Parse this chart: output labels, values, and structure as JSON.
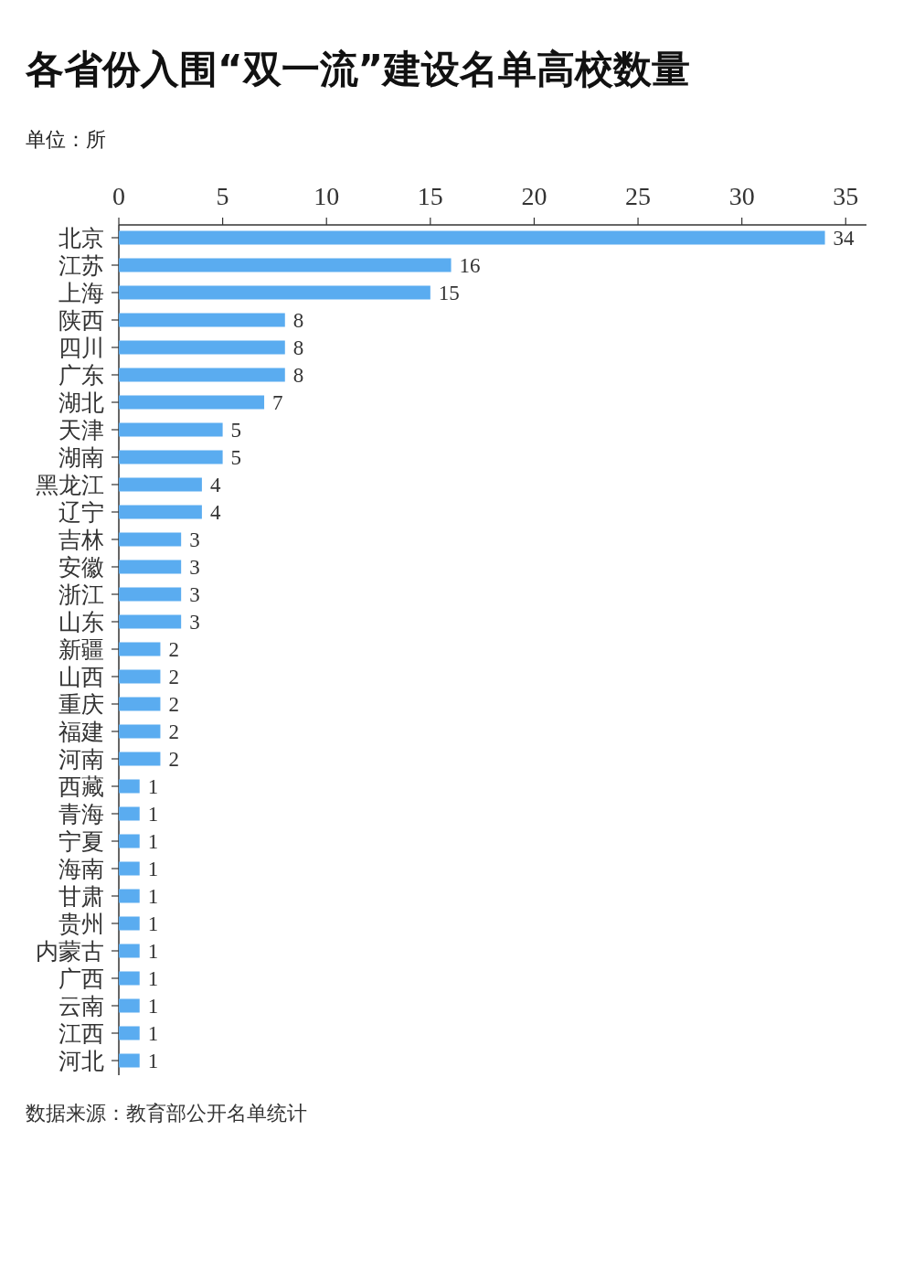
{
  "chart_data": {
    "type": "bar",
    "orientation": "horizontal",
    "title": "各省份入围“双一流”建设名单高校数量",
    "subtitle": "单位：所",
    "categories": [
      "北京",
      "江苏",
      "上海",
      "陕西",
      "四川",
      "广东",
      "湖北",
      "天津",
      "湖南",
      "黑龙江",
      "辽宁",
      "吉林",
      "安徽",
      "浙江",
      "山东",
      "新疆",
      "山西",
      "重庆",
      "福建",
      "河南",
      "西藏",
      "青海",
      "宁夏",
      "海南",
      "甘肃",
      "贵州",
      "内蒙古",
      "广西",
      "云南",
      "江西",
      "河北"
    ],
    "values": [
      34,
      16,
      15,
      8,
      8,
      8,
      7,
      5,
      5,
      4,
      4,
      3,
      3,
      3,
      3,
      2,
      2,
      2,
      2,
      2,
      1,
      1,
      1,
      1,
      1,
      1,
      1,
      1,
      1,
      1,
      1
    ],
    "color": "#5aacf0",
    "xlim": [
      0,
      36
    ],
    "xticks": [
      0,
      5,
      10,
      15,
      20,
      25,
      30,
      35
    ],
    "data_labels": true,
    "grid": false,
    "annotations": [
      "数据来源：教育部公开名单统计"
    ]
  }
}
